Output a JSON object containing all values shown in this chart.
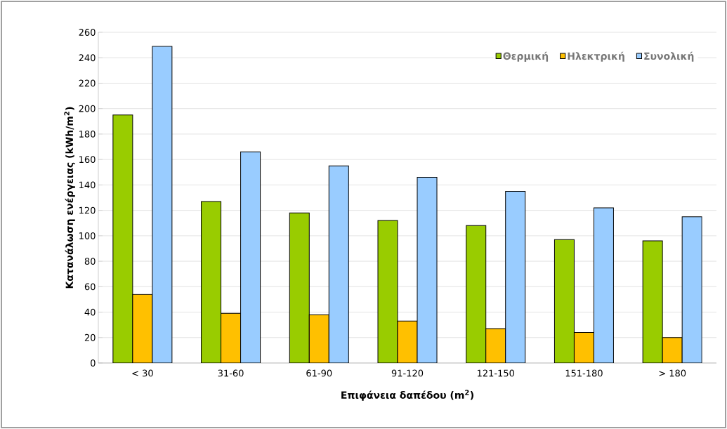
{
  "chart_data": {
    "type": "bar",
    "xlabel": "Επιφάνεια δαπέδου (m$^{2}$)",
    "ylabel": "Κατανάλωση ενέργειας (kWh/m$^{2}$)",
    "categories": [
      "< 30",
      "31-60",
      "61-90",
      "91-120",
      "121-150",
      "151-180",
      "> 180"
    ],
    "series": [
      {
        "name": "Θερμική",
        "color": "#99cc00",
        "values": [
          195,
          127,
          118,
          112,
          108,
          97,
          96
        ]
      },
      {
        "name": "Ηλεκτρική",
        "color": "#ffc000",
        "values": [
          54,
          39,
          38,
          33,
          27,
          24,
          20
        ]
      },
      {
        "name": "Συνολική",
        "color": "#99ccff",
        "values": [
          249,
          166,
          155,
          146,
          135,
          122,
          115
        ]
      }
    ],
    "ylim": [
      0,
      260
    ],
    "yticks": [
      0,
      20,
      40,
      60,
      80,
      100,
      120,
      140,
      160,
      180,
      200,
      220,
      240,
      260
    ],
    "grid": "y",
    "legend": "top right"
  }
}
